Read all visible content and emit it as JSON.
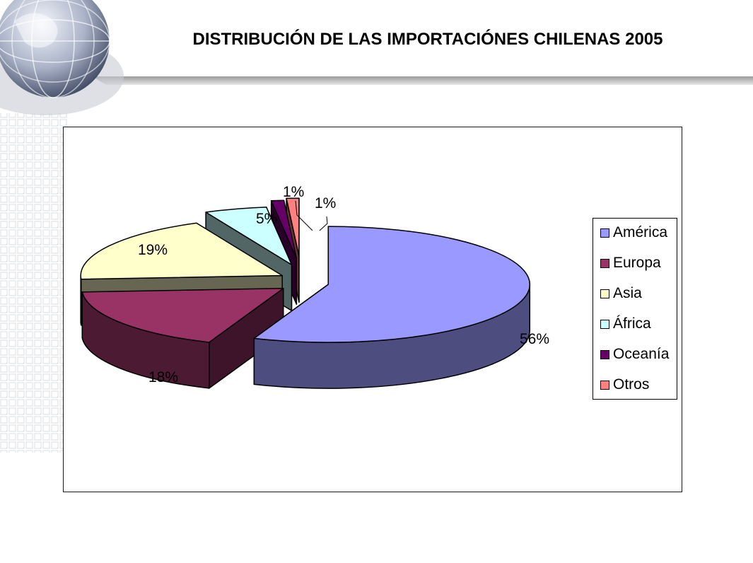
{
  "slide": {
    "title": "DISTRIBUCIÓN DE LAS IMPORTACIÓNES CHILENAS 2005"
  },
  "chart_data": {
    "type": "pie",
    "three_d": true,
    "exploded": true,
    "legend_position": "right",
    "categories": [
      "América",
      "Europa",
      "Asia",
      "África",
      "Oceanía",
      "Otros"
    ],
    "values": [
      56,
      18,
      19,
      5,
      1,
      1
    ],
    "data_labels": [
      "56%",
      "18%",
      "19%",
      "5%",
      "1%",
      "1%"
    ],
    "colors": [
      "#9999ff",
      "#993366",
      "#ffffcc",
      "#ccffff",
      "#660066",
      "#ff8080"
    ]
  }
}
